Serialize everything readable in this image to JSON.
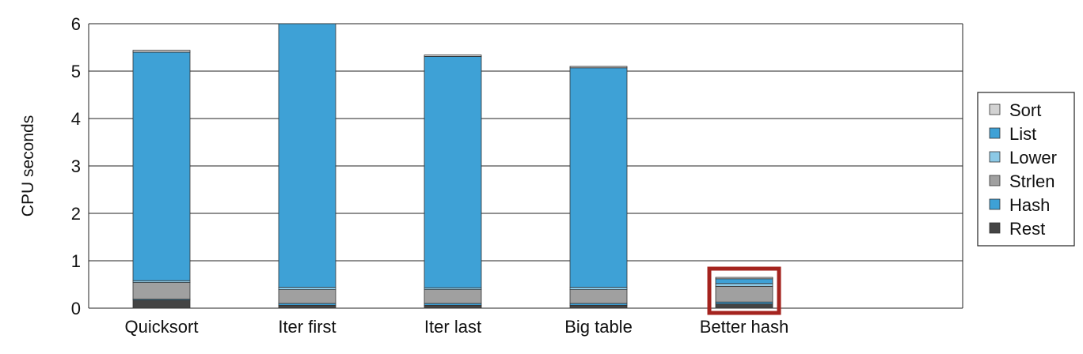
{
  "chart_data": {
    "type": "bar",
    "stacked": true,
    "title": "",
    "xlabel": "",
    "ylabel": "CPU seconds",
    "ylim": [
      0,
      6
    ],
    "yticks": [
      0,
      1,
      2,
      3,
      4,
      5,
      6
    ],
    "grid": "horizontal",
    "legend_position": "right",
    "categories": [
      "Quicksort",
      "Iter first",
      "Iter last",
      "Big table",
      "Better hash"
    ],
    "series": [
      {
        "name": "Rest",
        "color": "#444444",
        "values": [
          0.17,
          0.06,
          0.06,
          0.06,
          0.09
        ]
      },
      {
        "name": "Hash",
        "color": "#3ea1d6",
        "values": [
          0.02,
          0.04,
          0.04,
          0.04,
          0.04
        ]
      },
      {
        "name": "Strlen",
        "color": "#a0a0a0",
        "values": [
          0.35,
          0.29,
          0.29,
          0.29,
          0.33
        ]
      },
      {
        "name": "Lower",
        "color": "#8cc9e6",
        "values": [
          0.04,
          0.05,
          0.04,
          0.05,
          0.06
        ]
      },
      {
        "name": "List",
        "color": "#3ea1d6",
        "values": [
          4.82,
          5.56,
          4.88,
          4.63,
          0.1
        ]
      },
      {
        "name": "Sort",
        "color": "#d2d2d2",
        "values": [
          0.04,
          0.0,
          0.03,
          0.03,
          0.03
        ]
      }
    ],
    "legend_order": [
      "Sort",
      "List",
      "Lower",
      "Strlen",
      "Hash",
      "Rest"
    ],
    "highlight": {
      "category": "Better hash",
      "color": "#a4231e"
    }
  }
}
